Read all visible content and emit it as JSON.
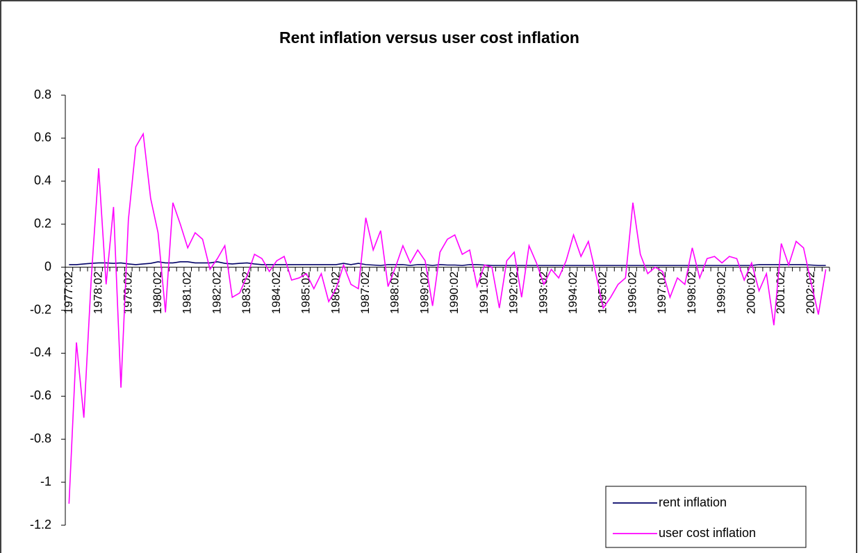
{
  "chart_data": {
    "type": "line",
    "title": "Rent inflation versus user cost inflation",
    "categories": [
      "1977:02",
      null,
      null,
      null,
      "1978:02",
      null,
      null,
      null,
      "1979:02",
      null,
      null,
      null,
      "1980:02",
      null,
      null,
      null,
      "1981:02",
      null,
      null,
      null,
      "1982:02",
      null,
      null,
      null,
      "1983:02",
      null,
      null,
      null,
      "1984:02",
      null,
      null,
      null,
      "1985:02",
      null,
      null,
      null,
      "1986:02",
      null,
      null,
      null,
      "1987:02",
      null,
      null,
      null,
      "1988:02",
      null,
      null,
      null,
      "1989:02",
      null,
      null,
      null,
      "1990:02",
      null,
      null,
      null,
      "1991:02",
      null,
      null,
      null,
      "1992:02",
      null,
      null,
      null,
      "1993:02",
      null,
      null,
      null,
      "1994:02",
      null,
      null,
      null,
      "1995:02",
      null,
      null,
      null,
      "1996:02",
      null,
      null,
      null,
      "1997:02",
      null,
      null,
      null,
      "1998:02",
      null,
      null,
      null,
      "1999:02",
      null,
      null,
      null,
      "2000:02",
      null,
      null,
      null,
      "2001:02",
      null,
      null,
      null,
      "2002:02",
      null,
      null
    ],
    "series": [
      {
        "name": "rent inflation",
        "color": "#000066",
        "values": [
          0.012,
          0.012,
          0.015,
          0.018,
          0.02,
          0.02,
          0.018,
          0.02,
          0.015,
          0.012,
          0.015,
          0.018,
          0.025,
          0.02,
          0.02,
          0.025,
          0.025,
          0.02,
          0.02,
          0.02,
          0.025,
          0.018,
          0.015,
          0.018,
          0.02,
          0.015,
          0.012,
          0.012,
          0.012,
          0.012,
          0.012,
          0.012,
          0.012,
          0.012,
          0.012,
          0.012,
          0.012,
          0.018,
          0.012,
          0.018,
          0.012,
          0.01,
          0.008,
          0.012,
          0.012,
          0.012,
          0.008,
          0.012,
          0.012,
          0.008,
          0.012,
          0.01,
          0.01,
          0.008,
          0.012,
          0.012,
          0.01,
          0.008,
          0.008,
          0.008,
          0.008,
          0.008,
          0.008,
          0.008,
          0.008,
          0.008,
          0.008,
          0.008,
          0.008,
          0.008,
          0.008,
          0.008,
          0.008,
          0.008,
          0.008,
          0.008,
          0.008,
          0.008,
          0.008,
          0.008,
          0.008,
          0.008,
          0.008,
          0.008,
          0.008,
          0.008,
          0.008,
          0.008,
          0.008,
          0.008,
          0.008,
          0.008,
          0.008,
          0.012,
          0.012,
          0.012,
          0.012,
          0.012,
          0.012,
          0.012,
          0.01,
          0.008,
          0.008
        ]
      },
      {
        "name": "user cost inflation",
        "color": "#ff00ff",
        "values": [
          -1.1,
          -0.35,
          -0.7,
          -0.05,
          0.46,
          -0.08,
          0.28,
          -0.56,
          0.22,
          0.56,
          0.62,
          0.32,
          0.16,
          -0.21,
          0.3,
          0.2,
          0.09,
          0.16,
          0.13,
          -0.01,
          0.04,
          0.1,
          -0.14,
          -0.12,
          -0.04,
          0.06,
          0.04,
          -0.02,
          0.03,
          0.05,
          -0.06,
          -0.05,
          -0.03,
          -0.1,
          -0.03,
          -0.16,
          -0.1,
          0.01,
          -0.08,
          -0.1,
          0.23,
          0.08,
          0.17,
          -0.09,
          0.0,
          0.1,
          0.02,
          0.08,
          0.03,
          -0.18,
          0.07,
          0.13,
          0.15,
          0.06,
          0.08,
          -0.09,
          0.01,
          0.0,
          -0.19,
          0.03,
          0.07,
          -0.14,
          0.1,
          0.02,
          -0.08,
          -0.01,
          -0.05,
          0.03,
          0.15,
          0.05,
          0.12,
          -0.03,
          -0.19,
          -0.14,
          -0.08,
          -0.05,
          0.3,
          0.06,
          -0.03,
          0.0,
          -0.02,
          -0.14,
          -0.05,
          -0.08,
          0.09,
          -0.05,
          0.04,
          0.05,
          0.02,
          0.05,
          0.04,
          -0.06,
          0.02,
          -0.11,
          -0.03,
          -0.27,
          0.11,
          0.01,
          0.12,
          0.09,
          -0.07,
          -0.22,
          -0.01
        ]
      }
    ],
    "ylim": [
      -1.2,
      0.8
    ],
    "yticks": [
      0.8,
      0.6,
      0.4,
      0.2,
      0,
      -0.2,
      -0.4,
      -0.6,
      -0.8,
      -1,
      -1.2
    ],
    "grid": false,
    "legend": "lower right"
  }
}
